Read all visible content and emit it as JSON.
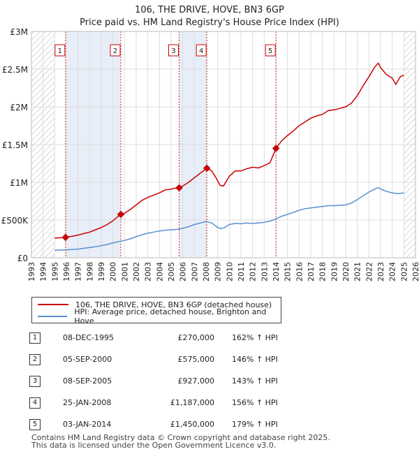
{
  "title": {
    "line1": "106, THE DRIVE, HOVE, BN3 6GP",
    "line2": "Price paid vs. HM Land Registry's House Price Index (HPI)"
  },
  "chart_data": {
    "type": "line",
    "xlim": [
      1993,
      2026
    ],
    "ylim": [
      0,
      3000000
    ],
    "y_ticks": [
      {
        "value": 0,
        "label": "£0"
      },
      {
        "value": 500000,
        "label": "£500K"
      },
      {
        "value": 1000000,
        "label": "£1M"
      },
      {
        "value": 1500000,
        "label": "£1.5M"
      },
      {
        "value": 2000000,
        "label": "£2M"
      },
      {
        "value": 2500000,
        "label": "£2.5M"
      },
      {
        "value": 3000000,
        "label": "£3M"
      }
    ],
    "x_ticks": [
      "1993",
      "1994",
      "1995",
      "1996",
      "1997",
      "1998",
      "1999",
      "2000",
      "2001",
      "2002",
      "2003",
      "2004",
      "2005",
      "2006",
      "2007",
      "2008",
      "2009",
      "2010",
      "2011",
      "2012",
      "2013",
      "2014",
      "2015",
      "2016",
      "2017",
      "2018",
      "2019",
      "2020",
      "2021",
      "2022",
      "2023",
      "2024",
      "2025",
      "2026"
    ],
    "grid": true,
    "hatched_regions": [
      [
        1993,
        1995.0
      ],
      [
        2025.0,
        2026
      ]
    ],
    "shaded_spans": [
      [
        1995.93,
        2000.68
      ],
      [
        2005.69,
        2008.07
      ]
    ],
    "series": [
      {
        "name": "106, THE DRIVE, HOVE, BN3 6GP (detached house)",
        "color": "#cc0000",
        "points": [
          [
            1995.0,
            260000
          ],
          [
            1995.5,
            265000
          ],
          [
            1995.93,
            270000
          ],
          [
            1996.5,
            285000
          ],
          [
            1997.0,
            300000
          ],
          [
            1997.5,
            320000
          ],
          [
            1998.0,
            340000
          ],
          [
            1998.5,
            370000
          ],
          [
            1999.0,
            400000
          ],
          [
            1999.5,
            440000
          ],
          [
            2000.0,
            490000
          ],
          [
            2000.3,
            530000
          ],
          [
            2000.68,
            575000
          ],
          [
            2001.0,
            590000
          ],
          [
            2001.5,
            640000
          ],
          [
            2002.0,
            700000
          ],
          [
            2002.5,
            760000
          ],
          [
            2003.0,
            800000
          ],
          [
            2003.5,
            830000
          ],
          [
            2004.0,
            860000
          ],
          [
            2004.5,
            900000
          ],
          [
            2005.0,
            910000
          ],
          [
            2005.3,
            920000
          ],
          [
            2005.69,
            927000
          ],
          [
            2006.0,
            950000
          ],
          [
            2006.5,
            1000000
          ],
          [
            2007.0,
            1060000
          ],
          [
            2007.5,
            1120000
          ],
          [
            2008.07,
            1187000
          ],
          [
            2008.5,
            1150000
          ],
          [
            2008.9,
            1050000
          ],
          [
            2009.2,
            960000
          ],
          [
            2009.5,
            950000
          ],
          [
            2010.0,
            1080000
          ],
          [
            2010.5,
            1150000
          ],
          [
            2011.0,
            1150000
          ],
          [
            2011.5,
            1180000
          ],
          [
            2012.0,
            1200000
          ],
          [
            2012.5,
            1190000
          ],
          [
            2013.0,
            1220000
          ],
          [
            2013.5,
            1260000
          ],
          [
            2014.01,
            1450000
          ],
          [
            2014.5,
            1550000
          ],
          [
            2015.0,
            1620000
          ],
          [
            2015.5,
            1680000
          ],
          [
            2016.0,
            1750000
          ],
          [
            2016.5,
            1800000
          ],
          [
            2017.0,
            1850000
          ],
          [
            2017.5,
            1880000
          ],
          [
            2018.0,
            1900000
          ],
          [
            2018.5,
            1950000
          ],
          [
            2019.0,
            1960000
          ],
          [
            2019.5,
            1980000
          ],
          [
            2020.0,
            2000000
          ],
          [
            2020.5,
            2050000
          ],
          [
            2021.0,
            2150000
          ],
          [
            2021.5,
            2280000
          ],
          [
            2022.0,
            2400000
          ],
          [
            2022.5,
            2530000
          ],
          [
            2022.8,
            2580000
          ],
          [
            2023.0,
            2520000
          ],
          [
            2023.5,
            2430000
          ],
          [
            2024.0,
            2380000
          ],
          [
            2024.3,
            2300000
          ],
          [
            2024.7,
            2400000
          ],
          [
            2025.0,
            2420000
          ]
        ]
      },
      {
        "name": "HPI: Average price, detached house, Brighton and Hove",
        "color": "#5b8fd0",
        "points": [
          [
            1995.0,
            100000
          ],
          [
            1995.5,
            102000
          ],
          [
            1996.0,
            105000
          ],
          [
            1996.5,
            108000
          ],
          [
            1997.0,
            115000
          ],
          [
            1997.5,
            125000
          ],
          [
            1998.0,
            135000
          ],
          [
            1998.5,
            145000
          ],
          [
            1999.0,
            160000
          ],
          [
            1999.5,
            175000
          ],
          [
            2000.0,
            195000
          ],
          [
            2000.5,
            215000
          ],
          [
            2001.0,
            230000
          ],
          [
            2001.5,
            250000
          ],
          [
            2002.0,
            280000
          ],
          [
            2002.5,
            305000
          ],
          [
            2003.0,
            325000
          ],
          [
            2003.5,
            340000
          ],
          [
            2004.0,
            355000
          ],
          [
            2004.5,
            365000
          ],
          [
            2005.0,
            370000
          ],
          [
            2005.5,
            375000
          ],
          [
            2006.0,
            390000
          ],
          [
            2006.5,
            410000
          ],
          [
            2007.0,
            440000
          ],
          [
            2007.5,
            460000
          ],
          [
            2008.0,
            480000
          ],
          [
            2008.5,
            460000
          ],
          [
            2009.0,
            400000
          ],
          [
            2009.3,
            385000
          ],
          [
            2009.6,
            400000
          ],
          [
            2010.0,
            440000
          ],
          [
            2010.5,
            455000
          ],
          [
            2011.0,
            450000
          ],
          [
            2011.5,
            460000
          ],
          [
            2012.0,
            455000
          ],
          [
            2012.5,
            460000
          ],
          [
            2013.0,
            470000
          ],
          [
            2013.5,
            485000
          ],
          [
            2014.0,
            515000
          ],
          [
            2014.5,
            550000
          ],
          [
            2015.0,
            575000
          ],
          [
            2015.5,
            600000
          ],
          [
            2016.0,
            630000
          ],
          [
            2016.5,
            650000
          ],
          [
            2017.0,
            660000
          ],
          [
            2017.5,
            670000
          ],
          [
            2018.0,
            680000
          ],
          [
            2018.5,
            690000
          ],
          [
            2019.0,
            690000
          ],
          [
            2019.5,
            695000
          ],
          [
            2020.0,
            700000
          ],
          [
            2020.5,
            725000
          ],
          [
            2021.0,
            770000
          ],
          [
            2021.5,
            820000
          ],
          [
            2022.0,
            870000
          ],
          [
            2022.5,
            910000
          ],
          [
            2022.8,
            930000
          ],
          [
            2023.0,
            910000
          ],
          [
            2023.5,
            880000
          ],
          [
            2024.0,
            860000
          ],
          [
            2024.5,
            850000
          ],
          [
            2025.0,
            860000
          ]
        ]
      }
    ],
    "sale_markers": [
      {
        "label": "1",
        "x": 1995.93,
        "y": 270000
      },
      {
        "label": "2",
        "x": 2000.68,
        "y": 575000
      },
      {
        "label": "3",
        "x": 2005.69,
        "y": 927000
      },
      {
        "label": "4",
        "x": 2008.07,
        "y": 1187000
      },
      {
        "label": "5",
        "x": 2014.01,
        "y": 1450000
      }
    ]
  },
  "legend": {
    "property_label": "106, THE DRIVE, HOVE, BN3 6GP (detached house)",
    "hpi_label": "HPI: Average price, detached house, Brighton and Hove"
  },
  "sales": [
    {
      "num": "1",
      "date": "08-DEC-1995",
      "price": "£270,000",
      "hpi": "162% ↑ HPI"
    },
    {
      "num": "2",
      "date": "05-SEP-2000",
      "price": "£575,000",
      "hpi": "146% ↑ HPI"
    },
    {
      "num": "3",
      "date": "08-SEP-2005",
      "price": "£927,000",
      "hpi": "143% ↑ HPI"
    },
    {
      "num": "4",
      "date": "25-JAN-2008",
      "price": "£1,187,000",
      "hpi": "156% ↑ HPI"
    },
    {
      "num": "5",
      "date": "03-JAN-2014",
      "price": "£1,450,000",
      "hpi": "179% ↑ HPI"
    }
  ],
  "footer": {
    "line1": "Contains HM Land Registry data © Crown copyright and database right 2025.",
    "line2": "This data is licensed under the Open Government Licence v3.0."
  }
}
